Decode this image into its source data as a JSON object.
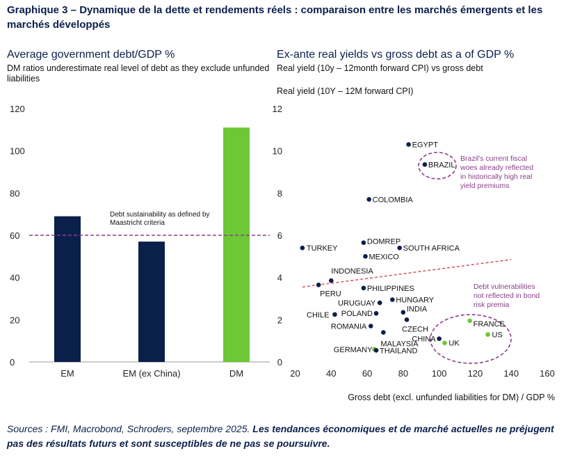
{
  "header": {
    "title": "Graphique 3 – Dynamique de la dette et rendements réels : comparaison entre les marchés émergents et les marchés développés"
  },
  "left_panel": {
    "title": "Average government debt/GDP %",
    "subtitle": "DM ratios underestimate real level of debt as they exclude unfunded liabilities",
    "threshold_label_1": "Debt sustainability as defined by",
    "threshold_label_2": "Maastricht criteria"
  },
  "right_panel": {
    "title": "Ex-ante real yields vs gross debt as a of GDP %",
    "subtitle": "Real yield (10y – 12month forward CPI) vs gross debt",
    "ylabel": "Real yield (10Y – 12M forward CPI)",
    "xlabel": "Gross debt (excl. unfunded liabilities for DM) / GDP %",
    "note_brazil": [
      "Brazil's current fiscal",
      "woes already reflected",
      "in historically high real",
      "yield premiums"
    ],
    "note_dm": [
      "Debt vulnerabilities",
      "not reflected in bond",
      "risk premia"
    ]
  },
  "footer": {
    "source": "Sources : FMI, Macrobond, Schroders, septembre 2025.",
    "disclaimer": "Les tendances économiques et de marché actuelles ne préjugent pas des résultats futurs et sont susceptibles de ne pas se poursuivre."
  },
  "colors": {
    "em": "#0b1f4b",
    "dm": "#6cc835",
    "threshold": "#8a3d8a",
    "trend": "#d9596e",
    "ellipse": "#8a3d8a"
  },
  "chart_data": [
    {
      "type": "bar",
      "title": "Average government debt/GDP %",
      "categories": [
        "EM",
        "EM (ex China)",
        "DM"
      ],
      "values": [
        69,
        57,
        111
      ],
      "ylim": [
        0,
        120
      ],
      "yticks": [
        0,
        20,
        40,
        60,
        80,
        100,
        120
      ],
      "threshold": 60,
      "xlabel": "",
      "ylabel": ""
    },
    {
      "type": "scatter",
      "title": "Ex-ante real yields vs gross debt as a of GDP %",
      "xlabel": "Gross debt (excl. unfunded liabilities for DM) / GDP %",
      "ylabel": "Real yield (10Y – 12M forward CPI)",
      "xlim": [
        20,
        160
      ],
      "ylim": [
        0,
        12
      ],
      "xticks": [
        20,
        40,
        60,
        80,
        100,
        120,
        140,
        160
      ],
      "yticks": [
        0,
        2,
        4,
        6,
        8,
        10,
        12
      ],
      "trendline": {
        "x": [
          24,
          140
        ],
        "y": [
          3.55,
          4.85
        ]
      },
      "points": [
        {
          "label": "EGYPT",
          "x": 83,
          "y": 10.3,
          "group": "EM"
        },
        {
          "label": "BRAZIL",
          "x": 92,
          "y": 9.35,
          "group": "EM"
        },
        {
          "label": "COLOMBIA",
          "x": 61,
          "y": 7.7,
          "group": "EM"
        },
        {
          "label": "DOMREP",
          "x": 58,
          "y": 5.65,
          "group": "EM"
        },
        {
          "label": "SOUTH AFRICA",
          "x": 78,
          "y": 5.4,
          "group": "EM"
        },
        {
          "label": "TURKEY",
          "x": 24,
          "y": 5.4,
          "group": "EM"
        },
        {
          "label": "MEXICO",
          "x": 59,
          "y": 5.0,
          "group": "EM"
        },
        {
          "label": "INDONESIA",
          "x": 40,
          "y": 3.85,
          "group": "EM"
        },
        {
          "label": "PERU",
          "x": 33,
          "y": 3.65,
          "group": "EM"
        },
        {
          "label": "PHILIPPINES",
          "x": 58,
          "y": 3.5,
          "group": "EM"
        },
        {
          "label": "HUNGARY",
          "x": 74,
          "y": 2.95,
          "group": "EM"
        },
        {
          "label": "URUGUAY",
          "x": 67,
          "y": 2.8,
          "group": "EM"
        },
        {
          "label": "INDIA",
          "x": 80,
          "y": 2.35,
          "group": "EM"
        },
        {
          "label": "POLAND",
          "x": 65,
          "y": 2.3,
          "group": "EM"
        },
        {
          "label": "CHILE",
          "x": 42,
          "y": 2.25,
          "group": "EM"
        },
        {
          "label": "CZECH",
          "x": 82,
          "y": 2.0,
          "group": "EM"
        },
        {
          "label": "ROMANIA",
          "x": 62,
          "y": 1.7,
          "group": "EM"
        },
        {
          "label": "MALAYSIA",
          "x": 69,
          "y": 1.4,
          "group": "EM"
        },
        {
          "label": "CHINA",
          "x": 100,
          "y": 1.1,
          "group": "EM"
        },
        {
          "label": "GERMANY",
          "x": 64,
          "y": 0.6,
          "group": "DM"
        },
        {
          "label": "THAILAND",
          "x": 65,
          "y": 0.55,
          "group": "EM"
        },
        {
          "label": "FRANCE",
          "x": 117,
          "y": 1.95,
          "group": "DM"
        },
        {
          "label": "US",
          "x": 127,
          "y": 1.3,
          "group": "DM"
        },
        {
          "label": "UK",
          "x": 103,
          "y": 0.9,
          "group": "DM"
        }
      ]
    }
  ]
}
